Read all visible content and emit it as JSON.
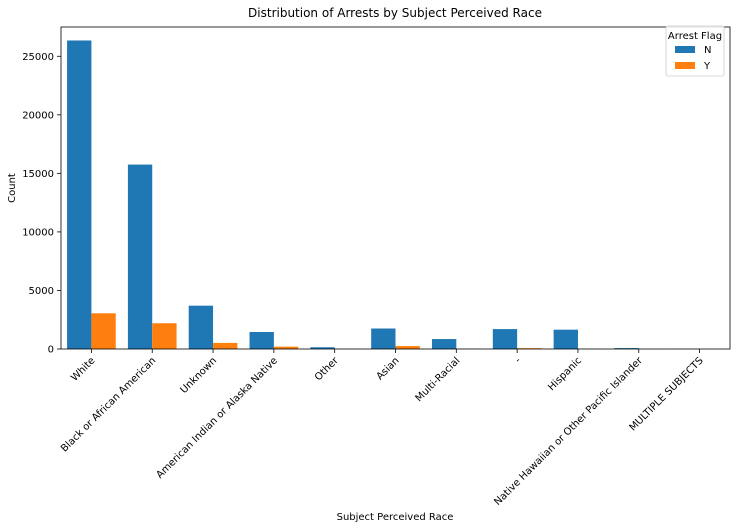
{
  "chart_data": {
    "type": "bar",
    "title": "Distribution of Arrests by Subject Perceived Race",
    "xlabel": "Subject Perceived Race",
    "ylabel": "Count",
    "ylim": [
      0,
      27500
    ],
    "yticks": [
      0,
      5000,
      10000,
      15000,
      20000,
      25000
    ],
    "categories": [
      "White",
      "Black or African American",
      "Unknown",
      "American Indian or Alaska Native",
      "Other",
      "Asian",
      "Multi-Racial",
      "-",
      "Hispanic",
      "Native Hawaiian or Other Pacific Islander",
      "MULTIPLE SUBJECTS"
    ],
    "series": [
      {
        "name": "N",
        "color": "#1f77b4",
        "values": [
          26350,
          15750,
          3700,
          1450,
          150,
          1750,
          850,
          1700,
          1650,
          80,
          8
        ]
      },
      {
        "name": "Y",
        "color": "#ff7f0e",
        "values": [
          3050,
          2200,
          520,
          200,
          10,
          250,
          20,
          70,
          15,
          5,
          1
        ]
      }
    ],
    "legend": {
      "title": "Arrest Flag",
      "placement": "top-right"
    },
    "grid": false
  }
}
